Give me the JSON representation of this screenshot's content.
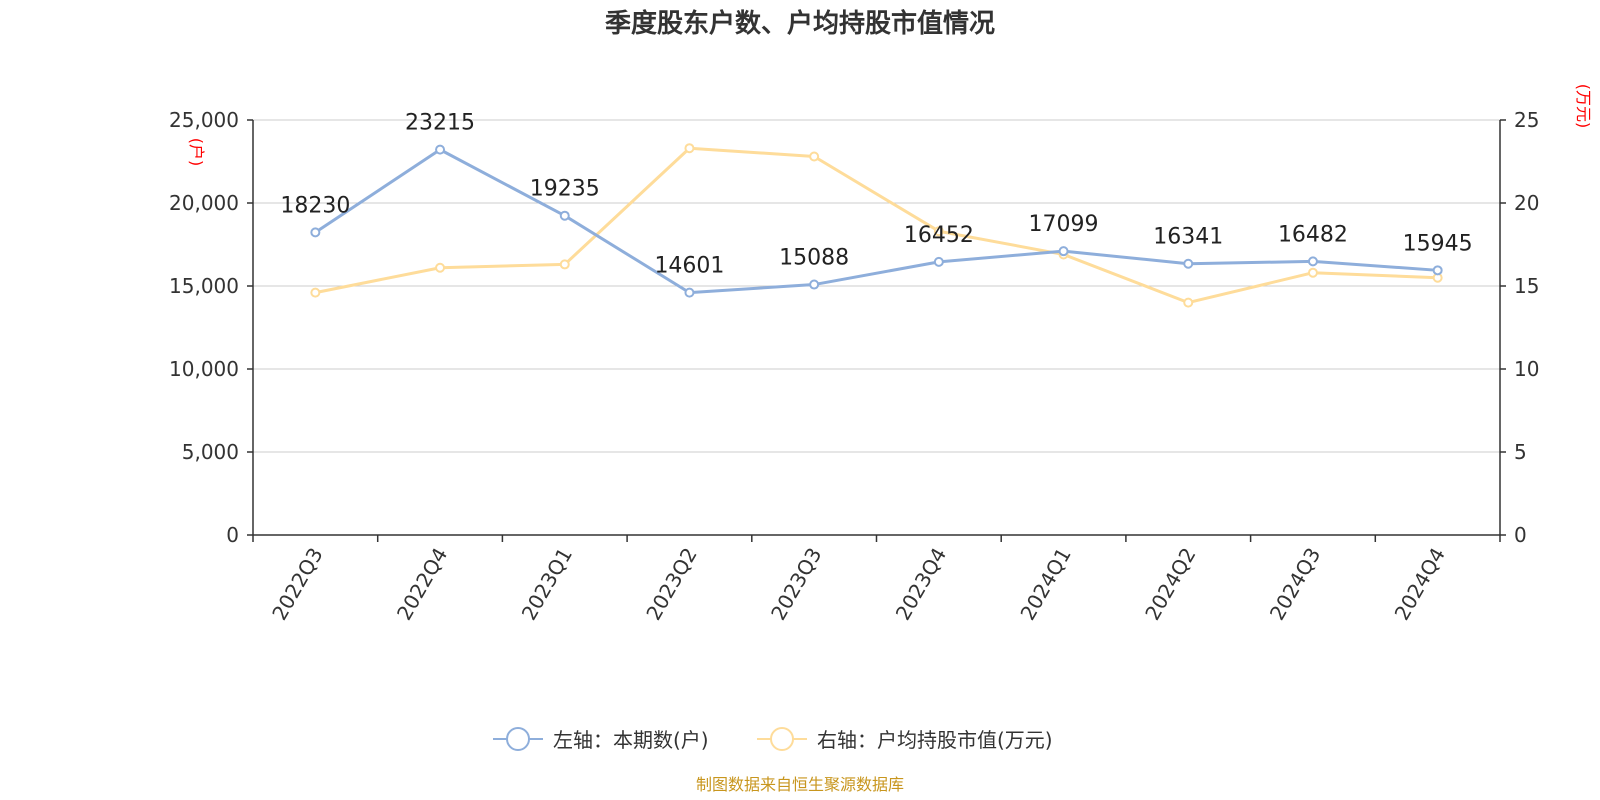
{
  "title": "季度股东户数、户均持股市值情况",
  "source": "制图数据来自恒生聚源数据库",
  "colors": {
    "left_series": "#8eaedb",
    "right_series": "#fedc9a",
    "unit_text": "#ff0000",
    "source_text": "#c8961e",
    "grid": "#cccccc"
  },
  "chart_data": {
    "type": "line",
    "categories": [
      "2022Q3",
      "2022Q4",
      "2023Q1",
      "2023Q2",
      "2023Q3",
      "2023Q4",
      "2024Q1",
      "2024Q2",
      "2024Q3",
      "2024Q4"
    ],
    "series": [
      {
        "name": "左轴：本期数(户)",
        "axis": "left",
        "values": [
          18230,
          23215,
          19235,
          14601,
          15088,
          16452,
          17099,
          16341,
          16482,
          15945
        ],
        "data_labels": [
          "18230",
          "23215",
          "19235",
          "14601",
          "15088",
          "16452",
          "17099",
          "16341",
          "16482",
          "15945"
        ]
      },
      {
        "name": "右轴：户均持股市值(万元)",
        "axis": "right",
        "values": [
          14.6,
          16.1,
          16.3,
          23.3,
          22.8,
          18.3,
          16.9,
          14.0,
          15.8,
          15.5
        ]
      }
    ],
    "y_left": {
      "unit": "(户)",
      "ylim": [
        0,
        25000
      ],
      "ticks": [
        0,
        5000,
        10000,
        15000,
        20000,
        25000
      ],
      "tick_labels": [
        "0",
        "5,000",
        "10,000",
        "15,000",
        "20,000",
        "25,000"
      ]
    },
    "y_right": {
      "unit": "(万元)",
      "ylim": [
        0,
        25
      ],
      "ticks": [
        0,
        5,
        10,
        15,
        20,
        25
      ],
      "tick_labels": [
        "0",
        "5",
        "10",
        "15",
        "20",
        "25"
      ]
    },
    "grid": true,
    "legend_position": "bottom-center"
  }
}
